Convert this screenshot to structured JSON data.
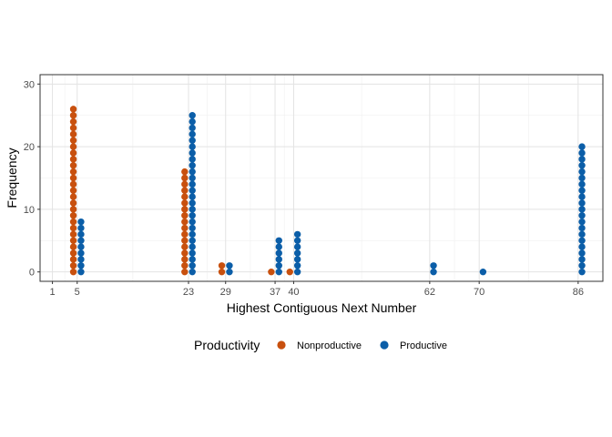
{
  "chart_data": {
    "type": "scatter",
    "subtype": "dotplot-dodged",
    "xlabel": "Highest Contiguous Next Number",
    "ylabel": "Frequency",
    "x_ticks": [
      1,
      5,
      23,
      29,
      37,
      40,
      62,
      70,
      86
    ],
    "x_minor_ticks": [
      3,
      14,
      26,
      33,
      38.5,
      51,
      66,
      78
    ],
    "xlim": [
      -1,
      90
    ],
    "y_ticks": [
      0,
      10,
      20,
      30
    ],
    "ylim": [
      -1.5,
      31.5
    ],
    "grid": true,
    "legend": {
      "title": "Productivity",
      "position": "bottom"
    },
    "series": [
      {
        "name": "Nonproductive",
        "color": "#C8500E",
        "points": [
          {
            "x": 5,
            "count": 27
          },
          {
            "x": 23,
            "count": 17
          },
          {
            "x": 29,
            "count": 2
          },
          {
            "x": 37,
            "count": 1
          },
          {
            "x": 40,
            "count": 1
          }
        ]
      },
      {
        "name": "Productive",
        "color": "#0B5EA8",
        "points": [
          {
            "x": 5,
            "count": 9
          },
          {
            "x": 23,
            "count": 26
          },
          {
            "x": 29,
            "count": 2
          },
          {
            "x": 37,
            "count": 6
          },
          {
            "x": 40,
            "count": 7
          },
          {
            "x": 62,
            "count": 2
          },
          {
            "x": 70,
            "count": 1
          },
          {
            "x": 86,
            "count": 21
          }
        ]
      }
    ]
  }
}
